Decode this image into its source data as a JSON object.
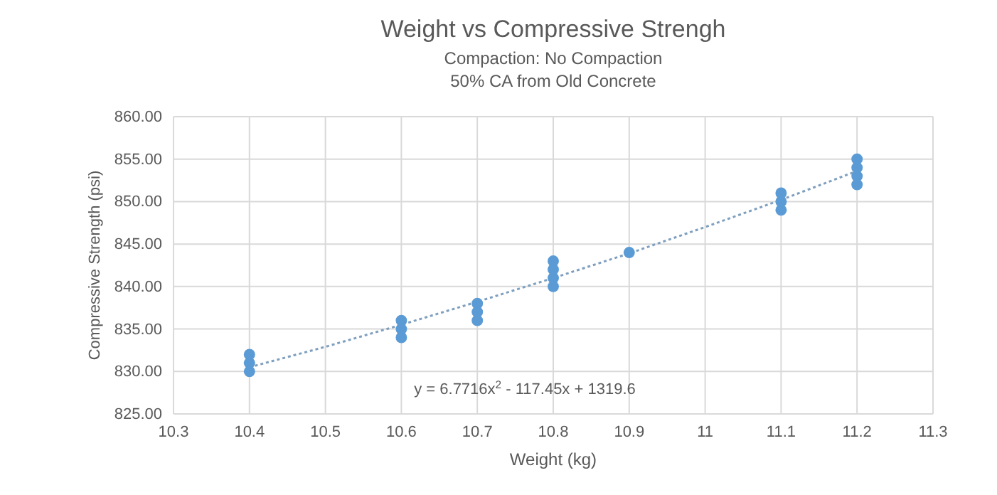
{
  "chart_data": {
    "type": "scatter",
    "title": "Weight vs Compressive Strengh",
    "subtitle": "Compaction: No Compaction\n50% CA from Old Concrete",
    "xlabel": "Weight (kg)",
    "ylabel": "Compressive Strength (psi)",
    "xlim": [
      10.3,
      11.3
    ],
    "xticks": [
      10.3,
      10.4,
      10.5,
      10.6,
      10.7,
      10.8,
      10.9,
      11,
      11.1,
      11.2,
      11.3
    ],
    "ylim": [
      825,
      860
    ],
    "yticks": [
      {
        "value": 825,
        "label": "825.00"
      },
      {
        "value": 830,
        "label": "830.00"
      },
      {
        "value": 835,
        "label": "835.00"
      },
      {
        "value": 840,
        "label": "840.00"
      },
      {
        "value": 845,
        "label": "845.00"
      },
      {
        "value": 850,
        "label": "850.00"
      },
      {
        "value": 855,
        "label": "855.00"
      },
      {
        "value": 860,
        "label": "860.00"
      }
    ],
    "grid": true,
    "marker": "circle",
    "series": [
      {
        "color": "#5b9bd5",
        "x": [
          10.4,
          10.4,
          10.4,
          10.6,
          10.6,
          10.6,
          10.7,
          10.7,
          10.7,
          10.8,
          10.8,
          10.8,
          10.8,
          10.9,
          11.1,
          11.1,
          11.1,
          11.2,
          11.2,
          11.2,
          11.2
        ],
        "values": [
          830,
          831,
          832,
          834,
          835,
          836,
          836,
          837,
          838,
          840,
          841,
          842,
          843,
          844,
          849,
          850,
          851,
          852,
          853,
          854,
          855
        ]
      },
      {
        "type": "line",
        "color": "#7f9fbf",
        "line_style": "dotted",
        "marker": "none",
        "x": [
          10.4,
          10.5,
          10.6,
          10.7,
          10.8,
          10.9,
          11.0,
          11.1,
          11.2
        ],
        "values": [
          830.5,
          832.9,
          835.5,
          838.2,
          841.0,
          843.9,
          847.0,
          850.2,
          853.6
        ]
      }
    ],
    "annotations": [
      "y = 6.7716x$^{2}$ - 117.45x + 1319.6"
    ]
  }
}
